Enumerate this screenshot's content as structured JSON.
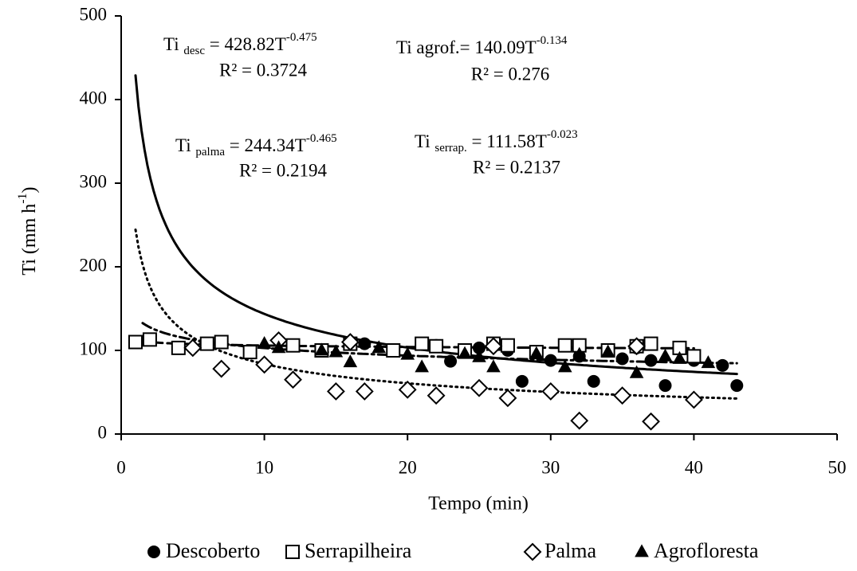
{
  "chart_data": {
    "type": "scatter",
    "x_label": "Tempo (min)",
    "y_label": {
      "text": "Ti (mm h",
      "sup": "-1",
      "end": ")"
    },
    "xlim": [
      0,
      50
    ],
    "xticks": [
      0,
      10,
      20,
      30,
      40,
      50
    ],
    "ylim": [
      0,
      500
    ],
    "yticks": [
      0,
      100,
      200,
      300,
      400,
      500
    ],
    "color": "#000000",
    "series": [
      {
        "name": "Descoberto",
        "marker": "circle",
        "x": [
          17,
          21,
          22,
          23,
          25,
          27,
          28,
          30,
          32,
          33,
          35,
          36,
          37,
          38,
          40,
          42,
          43
        ],
        "values": [
          108,
          107,
          106,
          87,
          103,
          100,
          63,
          88,
          93,
          63,
          90,
          103,
          88,
          58,
          88,
          82,
          58
        ],
        "fit": {
          "a": 428.82,
          "b": -0.475,
          "from": 1,
          "to": 43,
          "dash": "none"
        }
      },
      {
        "name": "Serrapilheira",
        "marker": "square",
        "x": [
          1,
          2,
          4,
          6,
          7,
          9,
          12,
          14,
          16,
          19,
          21,
          22,
          24,
          26,
          27,
          29,
          31,
          32,
          34,
          36,
          37,
          39,
          40
        ],
        "values": [
          110,
          113,
          103,
          108,
          110,
          98,
          106,
          100,
          108,
          100,
          108,
          105,
          100,
          108,
          106,
          98,
          106,
          106,
          100,
          105,
          108,
          103,
          93
        ],
        "fit": {
          "a": 111.58,
          "b": -0.023,
          "from": 1,
          "to": 40,
          "dash": "14 6"
        }
      },
      {
        "name": "Palma",
        "marker": "diamond",
        "x": [
          5,
          7,
          10,
          11,
          12,
          15,
          16,
          17,
          20,
          22,
          25,
          26,
          27,
          30,
          32,
          35,
          36,
          37,
          40
        ],
        "values": [
          103,
          78,
          83,
          112,
          65,
          51,
          110,
          51,
          53,
          46,
          55,
          105,
          43,
          51,
          16,
          46,
          105,
          15,
          41
        ],
        "fit": {
          "a": 244.34,
          "b": -0.465,
          "from": 1,
          "to": 43,
          "dash": "2 5"
        }
      },
      {
        "name": "Agrofloresta",
        "marker": "triangle",
        "x": [
          10,
          11,
          14,
          15,
          16,
          18,
          20,
          21,
          24,
          25,
          26,
          29,
          31,
          32,
          34,
          36,
          38,
          39,
          41
        ],
        "values": [
          108,
          103,
          100,
          98,
          86,
          103,
          95,
          80,
          96,
          92,
          80,
          96,
          80,
          95,
          98,
          73,
          93,
          90,
          85
        ],
        "fit": {
          "a": 140.09,
          "b": -0.134,
          "from": 1.5,
          "to": 43,
          "dash": "12 5 3 5"
        }
      }
    ],
    "annotations": [
      {
        "lead": "Ti ",
        "sub": "desc",
        "eq": " = 428.82T",
        "sup": "-0.475",
        "r2": "R² = 0.3724"
      },
      {
        "lead": "Ti agrof.= 140.09T",
        "sub": "",
        "eq": "",
        "sup": "-0.134",
        "r2": "R² = 0.276"
      },
      {
        "lead": "Ti ",
        "sub": "palma",
        "eq": " = 244.34T",
        "sup": "-0.465",
        "r2": "R² = 0.2194"
      },
      {
        "lead": "Ti ",
        "sub": "serrap.",
        "eq": " = 111.58T",
        "sup": "-0.023",
        "r2": "R² = 0.2137"
      }
    ]
  }
}
